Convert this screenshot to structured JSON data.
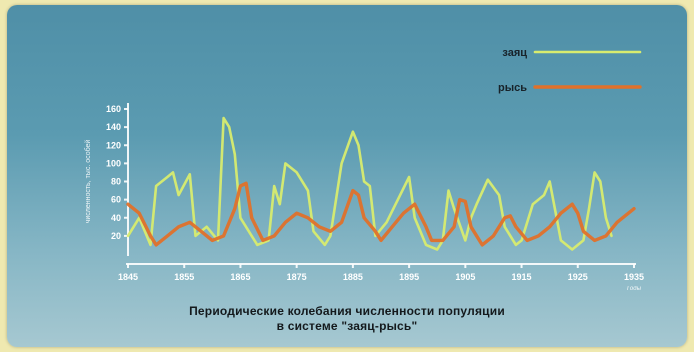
{
  "chart_data": {
    "type": "line",
    "title": "Периодические колебания численности популяции",
    "subtitle": "в системе \"заяц-рысь\"",
    "ylabel": "численность, тыс. особей",
    "x_unit_label": "Годы",
    "ylim": [
      0,
      160
    ],
    "xlim": [
      1845,
      1935
    ],
    "y_ticks": [
      "20",
      "40",
      "60",
      "80",
      "100",
      "120",
      "140",
      "160"
    ],
    "x_ticks": [
      "1845",
      "1855",
      "1865",
      "1875",
      "1885",
      "1895",
      "1905",
      "1915",
      "1925",
      "1935"
    ],
    "legend_position": "top-right",
    "series": [
      {
        "name": "заяц",
        "color": "#d8ec6e",
        "points": [
          [
            1845,
            20
          ],
          [
            1847,
            40
          ],
          [
            1849,
            10
          ],
          [
            1850,
            75
          ],
          [
            1852,
            85
          ],
          [
            1853,
            90
          ],
          [
            1854,
            65
          ],
          [
            1856,
            88
          ],
          [
            1857,
            20
          ],
          [
            1859,
            30
          ],
          [
            1861,
            15
          ],
          [
            1862,
            150
          ],
          [
            1863,
            140
          ],
          [
            1864,
            110
          ],
          [
            1865,
            40
          ],
          [
            1867,
            20
          ],
          [
            1868,
            10
          ],
          [
            1870,
            15
          ],
          [
            1871,
            75
          ],
          [
            1872,
            55
          ],
          [
            1873,
            100
          ],
          [
            1875,
            90
          ],
          [
            1877,
            70
          ],
          [
            1878,
            25
          ],
          [
            1880,
            10
          ],
          [
            1881,
            20
          ],
          [
            1883,
            100
          ],
          [
            1885,
            135
          ],
          [
            1886,
            120
          ],
          [
            1887,
            80
          ],
          [
            1888,
            75
          ],
          [
            1889,
            20
          ],
          [
            1891,
            35
          ],
          [
            1893,
            60
          ],
          [
            1895,
            85
          ],
          [
            1896,
            40
          ],
          [
            1898,
            10
          ],
          [
            1900,
            5
          ],
          [
            1901,
            15
          ],
          [
            1902,
            70
          ],
          [
            1903,
            50
          ],
          [
            1905,
            15
          ],
          [
            1906,
            40
          ],
          [
            1907,
            55
          ],
          [
            1909,
            82
          ],
          [
            1911,
            65
          ],
          [
            1912,
            30
          ],
          [
            1914,
            10
          ],
          [
            1915,
            15
          ],
          [
            1917,
            55
          ],
          [
            1919,
            65
          ],
          [
            1920,
            80
          ],
          [
            1922,
            15
          ],
          [
            1924,
            5
          ],
          [
            1926,
            15
          ],
          [
            1927,
            50
          ],
          [
            1928,
            90
          ],
          [
            1929,
            80
          ],
          [
            1930,
            40
          ],
          [
            1931,
            20
          ]
        ]
      },
      {
        "name": "рысь",
        "color": "#e0712a",
        "points": [
          [
            1845,
            55
          ],
          [
            1847,
            45
          ],
          [
            1849,
            20
          ],
          [
            1850,
            10
          ],
          [
            1852,
            20
          ],
          [
            1854,
            30
          ],
          [
            1856,
            35
          ],
          [
            1858,
            25
          ],
          [
            1860,
            15
          ],
          [
            1862,
            20
          ],
          [
            1864,
            50
          ],
          [
            1865,
            75
          ],
          [
            1866,
            78
          ],
          [
            1867,
            40
          ],
          [
            1869,
            15
          ],
          [
            1871,
            20
          ],
          [
            1873,
            35
          ],
          [
            1875,
            45
          ],
          [
            1877,
            40
          ],
          [
            1879,
            30
          ],
          [
            1881,
            25
          ],
          [
            1883,
            35
          ],
          [
            1885,
            70
          ],
          [
            1886,
            65
          ],
          [
            1887,
            40
          ],
          [
            1889,
            25
          ],
          [
            1890,
            15
          ],
          [
            1892,
            30
          ],
          [
            1894,
            45
          ],
          [
            1896,
            55
          ],
          [
            1898,
            30
          ],
          [
            1899,
            15
          ],
          [
            1901,
            15
          ],
          [
            1903,
            30
          ],
          [
            1904,
            60
          ],
          [
            1905,
            58
          ],
          [
            1906,
            30
          ],
          [
            1908,
            10
          ],
          [
            1910,
            20
          ],
          [
            1912,
            40
          ],
          [
            1913,
            42
          ],
          [
            1914,
            30
          ],
          [
            1916,
            15
          ],
          [
            1918,
            20
          ],
          [
            1920,
            30
          ],
          [
            1922,
            45
          ],
          [
            1924,
            55
          ],
          [
            1925,
            45
          ],
          [
            1926,
            25
          ],
          [
            1928,
            15
          ],
          [
            1930,
            20
          ],
          [
            1932,
            35
          ],
          [
            1934,
            45
          ],
          [
            1935,
            50
          ]
        ]
      }
    ]
  }
}
